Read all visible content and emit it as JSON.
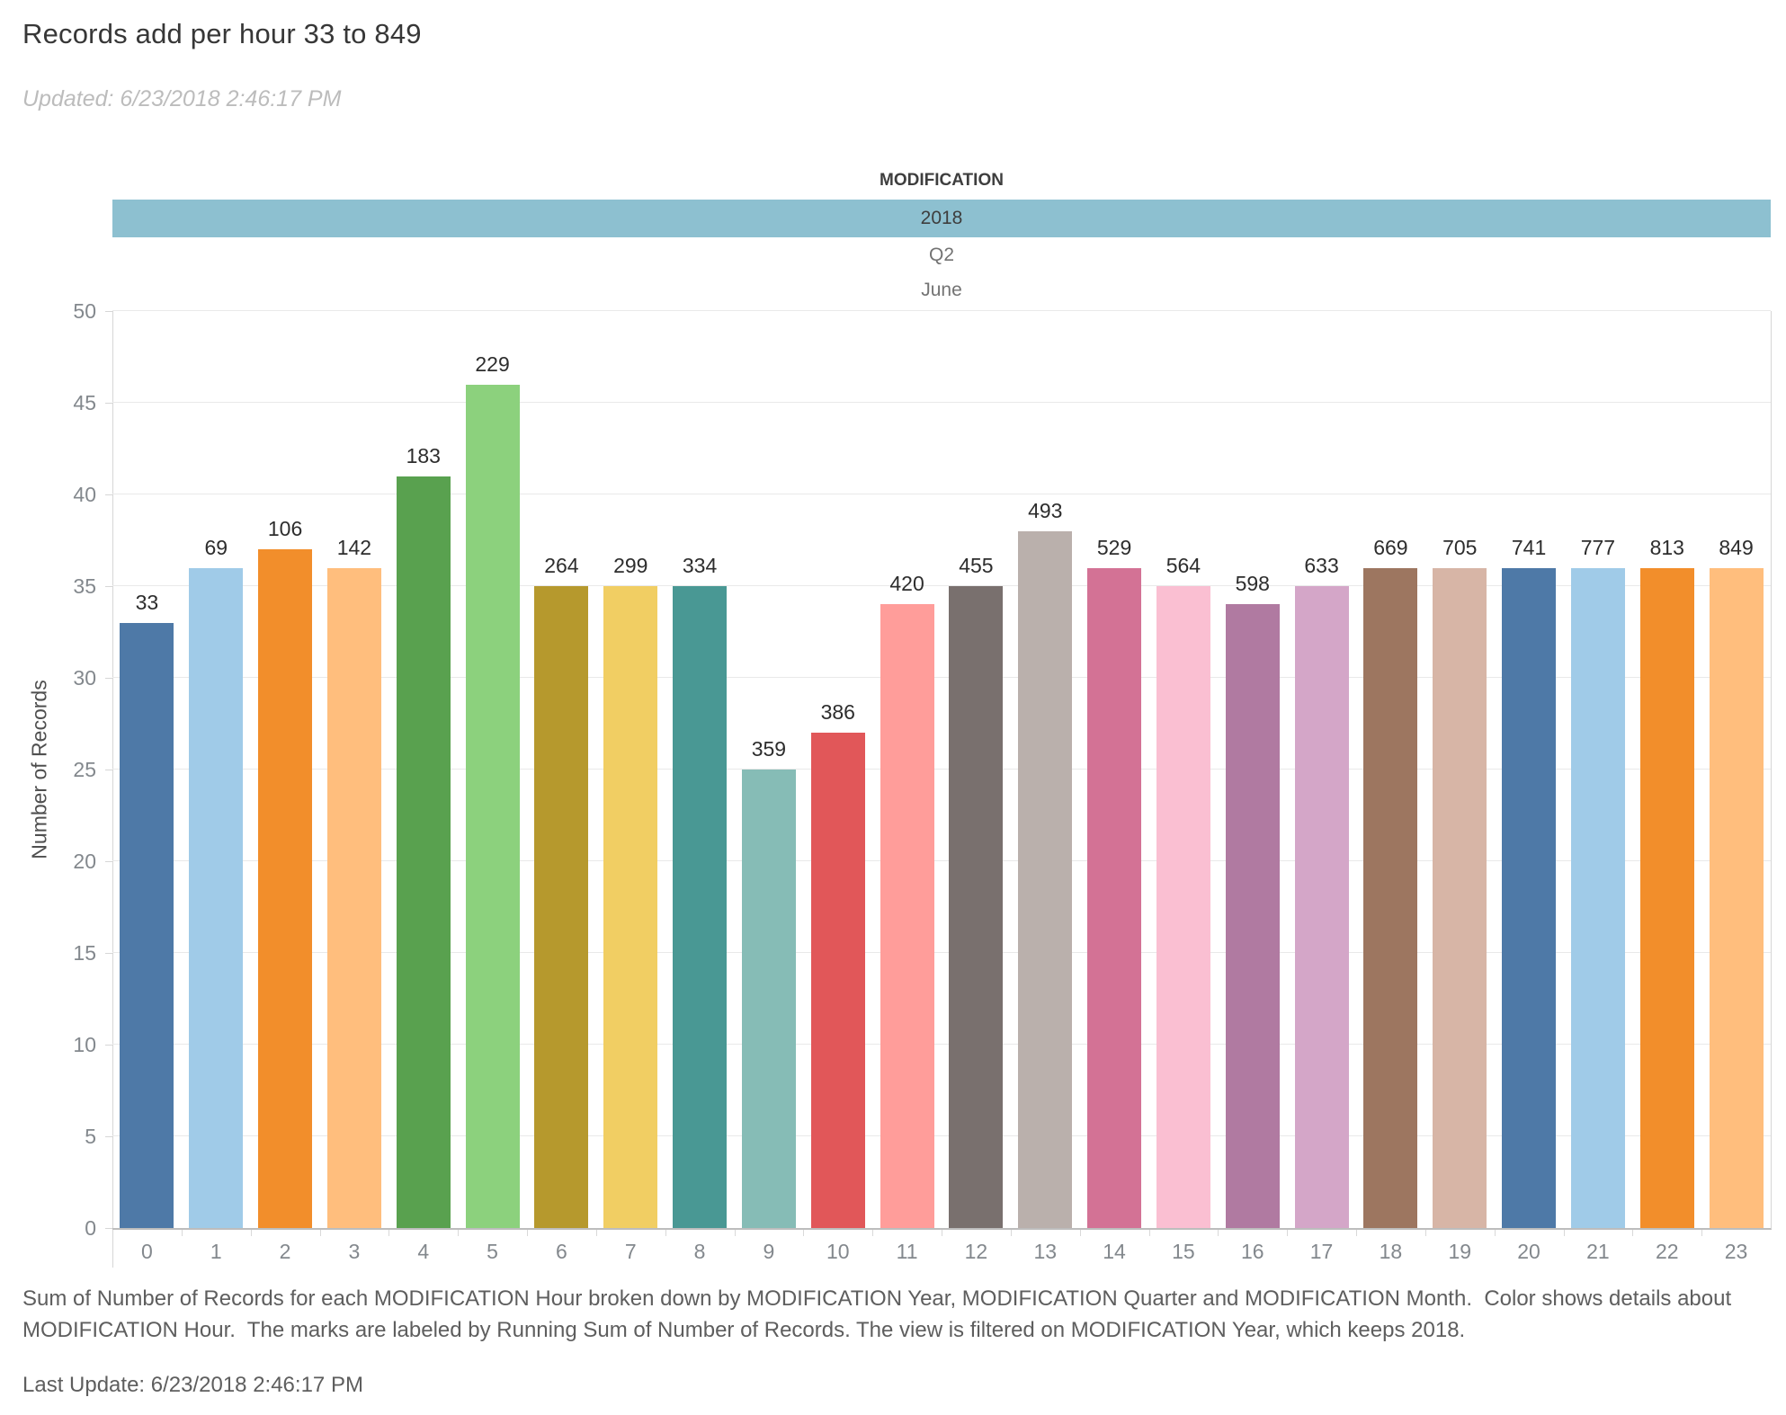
{
  "header": {
    "title": "Records add per hour 33 to 849",
    "updated": "Updated: 6/23/2018 2:46:17 PM"
  },
  "chart_data": {
    "type": "bar",
    "title": "Records add per hour 33 to 849",
    "column_field_label": "MODIFICATION",
    "year": "2018",
    "quarter": "Q2",
    "month": "June",
    "xlabel": "",
    "ylabel": "Number of Records",
    "ylim": [
      0,
      50
    ],
    "ytick_interval": 5,
    "grid": true,
    "legend_position": "none",
    "categories": [
      "0",
      "1",
      "2",
      "3",
      "4",
      "5",
      "6",
      "7",
      "8",
      "9",
      "10",
      "11",
      "12",
      "13",
      "14",
      "15",
      "16",
      "17",
      "18",
      "19",
      "20",
      "21",
      "22",
      "23"
    ],
    "values": [
      33,
      36,
      37,
      36,
      41,
      46,
      35,
      35,
      35,
      25,
      27,
      34,
      35,
      38,
      36,
      35,
      34,
      35,
      36,
      36,
      36,
      36,
      36,
      36
    ],
    "running_sum_labels": [
      "33",
      "69",
      "106",
      "142",
      "183",
      "229",
      "264",
      "299",
      "334",
      "359",
      "386",
      "420",
      "455",
      "493",
      "529",
      "564",
      "598",
      "633",
      "669",
      "705",
      "741",
      "777",
      "813",
      "849"
    ],
    "bar_colors": [
      "#4e79a7",
      "#a0cbe8",
      "#f28e2b",
      "#ffbe7d",
      "#59a14f",
      "#8cd17d",
      "#b6992d",
      "#f1ce63",
      "#499894",
      "#86bcb6",
      "#e15759",
      "#ff9d9a",
      "#79706e",
      "#bab0ac",
      "#d37295",
      "#fabfd2",
      "#b07aa1",
      "#d4a6c8",
      "#9d7660",
      "#d7b5a6",
      "#4e79a7",
      "#a0cbe8",
      "#f28e2b",
      "#ffbe7d"
    ],
    "year_band_color": "#8dc0d0"
  },
  "caption": "Sum of Number of Records for each MODIFICATION Hour broken down by MODIFICATION Year, MODIFICATION Quarter and MODIFICATION Month.  Color shows details about MODIFICATION Hour.  The marks are labeled by Running Sum of Number of Records. The view is filtered on MODIFICATION Year, which keeps 2018.",
  "footer": {
    "last_update": "Last Update: 6/23/2018 2:46:17 PM"
  }
}
